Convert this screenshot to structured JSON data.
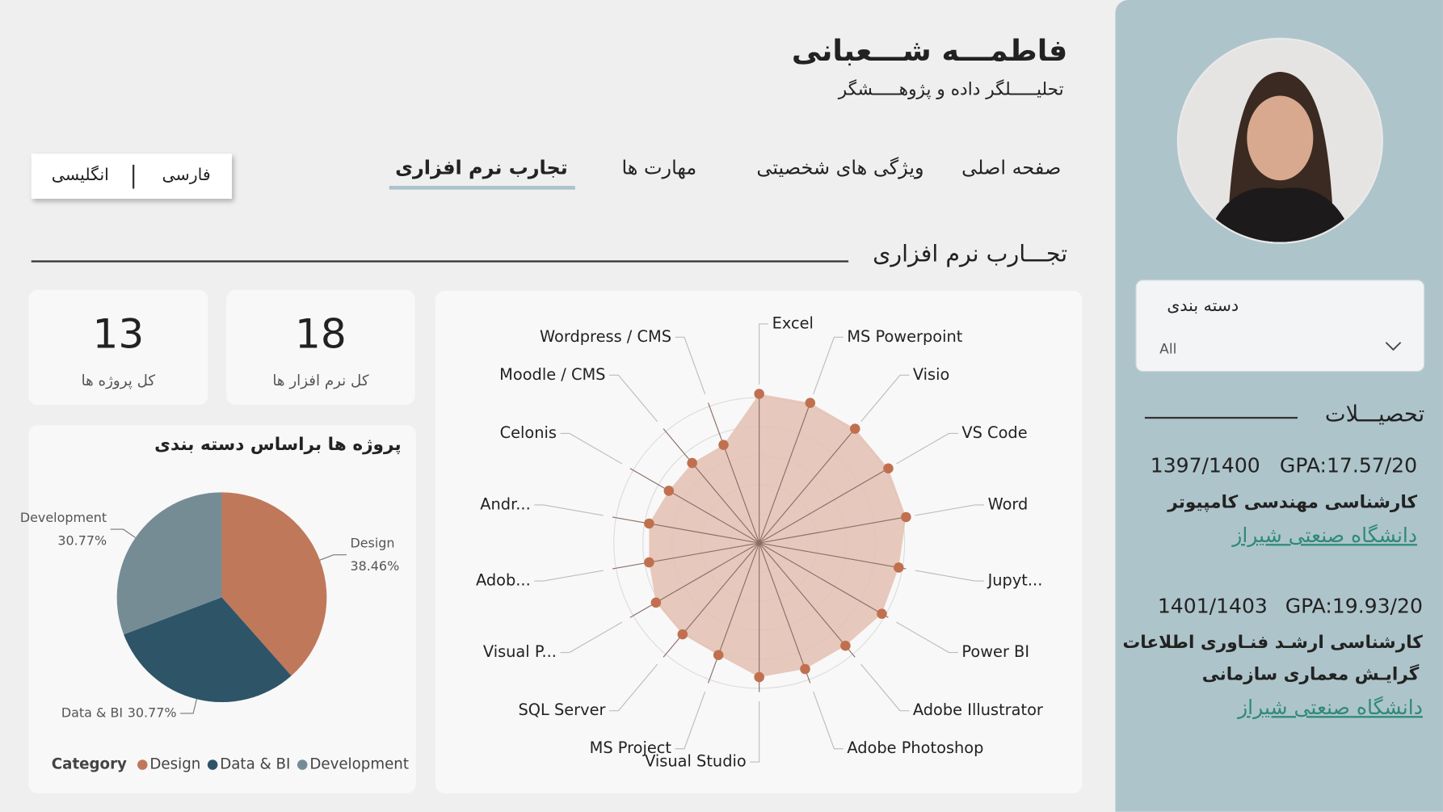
{
  "profile": {
    "name": "فاطمـــه شـــعبانی",
    "subtitle": "تحلیـــــلگر داده و پژوهـــــشگر"
  },
  "language_toggle": [
    "فارسی",
    "انگلیسی"
  ],
  "nav": {
    "items": [
      "صفحه اصلی",
      "ویژگی های شخصیتی",
      "مهارت ها",
      "تجارب نرم افزاری"
    ],
    "active": 3
  },
  "section_title": "تجـــارب نرم افزاری",
  "kpis": [
    {
      "value": 13,
      "label": "کل پروژه ها"
    },
    {
      "value": 18,
      "label": "کل نرم افزار ها"
    }
  ],
  "filter": {
    "label": "دسته بندی",
    "value": "All"
  },
  "education": {
    "title": "تحصیـــلات",
    "entries": [
      {
        "years": "1397/1400",
        "gpa": "GPA:17.57/20",
        "degree": [
          "کارشناسی مهندسی کامپیوتر"
        ],
        "university": "دانشگاه صنعتی شیراز"
      },
      {
        "years": "1401/1403",
        "gpa": "GPA:19.93/20",
        "degree": [
          "کارشناسی ارشـد فنـاوری اطلاعات",
          "گرایـش معماری سازمانی"
        ],
        "university": "دانشگاه صنعتی شیراز"
      }
    ]
  },
  "chart_data": [
    {
      "type": "pie",
      "title": "پروژه ها براساس دسته بندی",
      "legend_title": "Category",
      "categories": [
        "Design",
        "Data & BI",
        "Development"
      ],
      "values": [
        38.46,
        30.77,
        30.77
      ],
      "value_labels": [
        "38.46%",
        "30.77%",
        "30.77%"
      ],
      "colors": [
        "#c0785a",
        "#2e5468",
        "#768c95"
      ]
    },
    {
      "type": "radar",
      "categories": [
        "Excel",
        "MS Powerpoint",
        "Visio",
        "VS Code",
        "Word",
        "Jupyt...",
        "Power BI",
        "Adobe Illustrator",
        "Adobe Photoshop",
        "Visual Studio",
        "MS Project",
        "SQL Server",
        "Visual P...",
        "Adob...",
        "Andr...",
        "Celonis",
        "Moodle / CMS",
        "Wordpress / CMS"
      ],
      "values": [
        100,
        100,
        100,
        100,
        100,
        95,
        95,
        90,
        90,
        90,
        80,
        80,
        80,
        75,
        75,
        70,
        70,
        70
      ],
      "rlim": [
        0,
        100
      ],
      "color": "#c0704f",
      "fill": "#e4bfb1"
    }
  ]
}
